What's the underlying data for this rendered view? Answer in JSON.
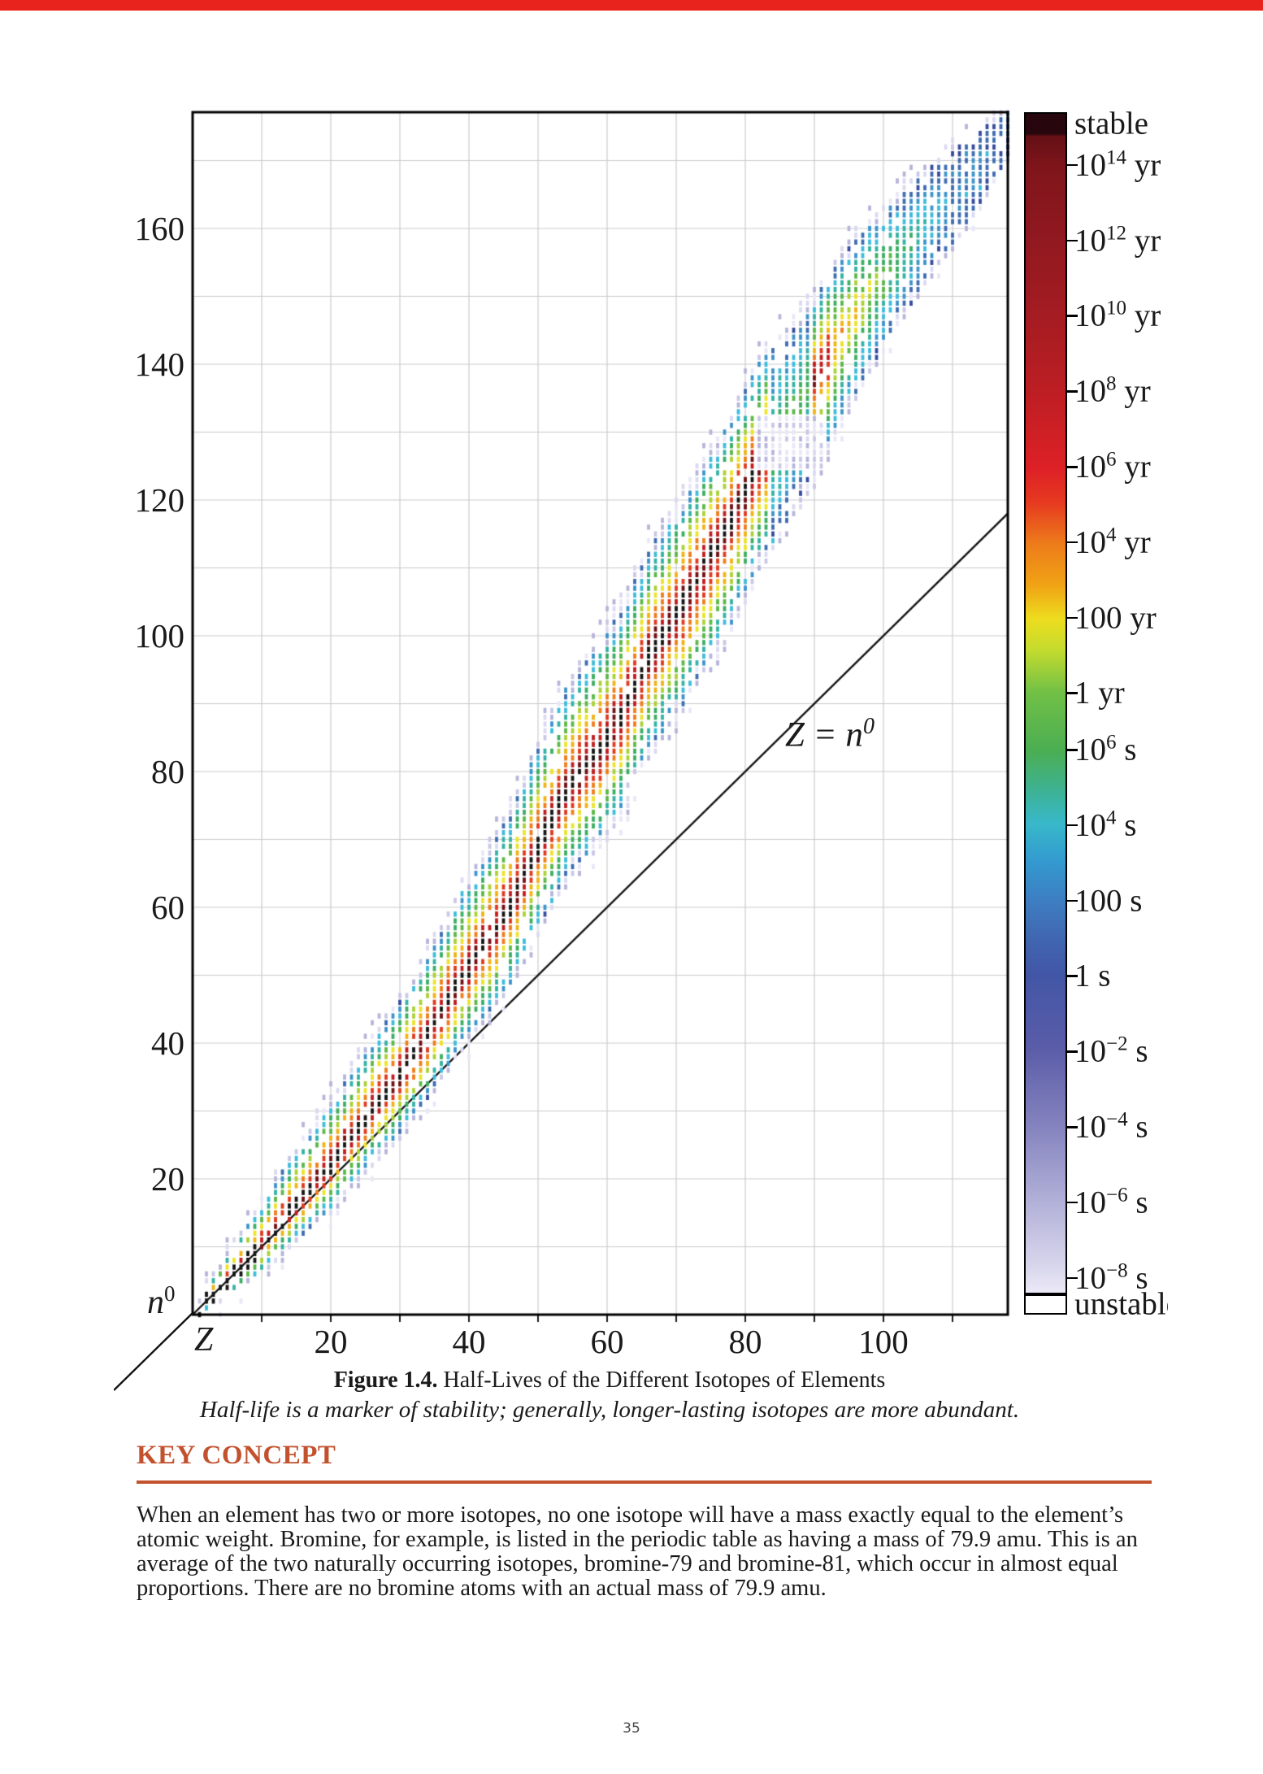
{
  "page": {
    "accent_color": "#e8231e",
    "page_number": "35"
  },
  "figure_caption": {
    "label": "Figure 1.4.",
    "title": " Half-Lives of the Different Isotopes of Elements",
    "subtitle": "Half-life is a marker of stability; generally, longer-lasting isotopes are more abundant."
  },
  "key_concept": {
    "heading": "KEY CONCEPT",
    "accent_color": "#c2512d",
    "lines": [
      "When an element has two or more isotopes, no one isotope will have a mass exactly equal to the element’s",
      "atomic weight. Bromine, for example, is listed in the periodic table as having a mass of 79.9 amu. This is an",
      "average of the two naturally occurring isotopes, bromine-79 and bromine-81, which occur in almost equal",
      "proportions. There are no bromine atoms with an actual mass of 79.9 amu."
    ]
  },
  "chart_data": {
    "type": "scatter",
    "description": "Chart of nuclides: each small tick is an isotope plotted by proton number Z (x-axis) and neutron number n (y-axis), colored by half-life from stable (black) through red/orange/yellow/green/cyan/blue to pale lavender (unstable).",
    "xlabel": "Z",
    "ylabel_base": "n",
    "ylabel_sup": "0",
    "xlim": [
      0,
      118
    ],
    "ylim": [
      0,
      177.5
    ],
    "x_ticks": [
      20,
      40,
      60,
      80,
      100
    ],
    "y_ticks": [
      20,
      40,
      60,
      80,
      100,
      120,
      140,
      160
    ],
    "grid_step": 10,
    "grid_color": "#cbcbcb",
    "diagonal_label_base": "Z = n",
    "diagonal_label_sup": "0",
    "stability_line": [
      [
        1,
        0
      ],
      [
        2,
        2
      ],
      [
        6,
        6
      ],
      [
        10,
        10
      ],
      [
        14,
        15
      ],
      [
        20,
        22
      ],
      [
        26,
        30
      ],
      [
        30,
        35
      ],
      [
        34,
        41
      ],
      [
        38,
        48
      ],
      [
        42,
        54
      ],
      [
        46,
        60
      ],
      [
        50,
        69
      ],
      [
        54,
        77
      ],
      [
        58,
        82
      ],
      [
        62,
        88
      ],
      [
        66,
        97
      ],
      [
        70,
        103
      ],
      [
        74,
        110
      ],
      [
        78,
        117
      ],
      [
        82,
        126
      ],
      [
        86,
        132
      ],
      [
        90,
        138
      ],
      [
        94,
        145
      ],
      [
        98,
        151
      ],
      [
        102,
        156
      ],
      [
        106,
        161
      ],
      [
        110,
        165
      ],
      [
        114,
        170
      ],
      [
        118,
        176
      ]
    ],
    "band_lower_width": [
      [
        1,
        1
      ],
      [
        10,
        4
      ],
      [
        20,
        7
      ],
      [
        30,
        9
      ],
      [
        40,
        11
      ],
      [
        50,
        13
      ],
      [
        60,
        15
      ],
      [
        70,
        16
      ],
      [
        80,
        17
      ],
      [
        90,
        16
      ],
      [
        100,
        12
      ],
      [
        110,
        8
      ],
      [
        118,
        6
      ]
    ],
    "band_upper_width": [
      [
        1,
        2
      ],
      [
        10,
        7
      ],
      [
        20,
        10
      ],
      [
        30,
        12
      ],
      [
        40,
        14
      ],
      [
        50,
        16
      ],
      [
        60,
        17
      ],
      [
        70,
        17
      ],
      [
        80,
        16
      ],
      [
        90,
        13
      ],
      [
        100,
        10
      ],
      [
        110,
        7
      ],
      [
        118,
        2
      ]
    ],
    "center_palette_index": [
      [
        1,
        0
      ],
      [
        83,
        0
      ],
      [
        84,
        8
      ],
      [
        89,
        8
      ],
      [
        90,
        1
      ],
      [
        92,
        1
      ],
      [
        93,
        4
      ],
      [
        96,
        5
      ],
      [
        100,
        7
      ],
      [
        104,
        9
      ],
      [
        108,
        11
      ],
      [
        112,
        12
      ],
      [
        118,
        13
      ]
    ],
    "halflife_palette": [
      "#141414",
      "#701014",
      "#c01c1e",
      "#e03a1e",
      "#ef7d1a",
      "#f0b316",
      "#ece32a",
      "#abd135",
      "#5cb848",
      "#3cae62",
      "#34b2a4",
      "#3ebcdc",
      "#3e93cb",
      "#3e6cb2",
      "#364a9e"
    ],
    "pale_colors": [
      "#c9c7e6",
      "#dbd9f0",
      "#b7b4da",
      "#e9e7f8"
    ],
    "pale_region": {
      "z_min": 82,
      "z_max": 91,
      "n_min": 125,
      "n_max": 132
    },
    "colorbar": {
      "gradient": [
        [
          0.0,
          "#27070d"
        ],
        [
          0.017,
          "#27070d"
        ],
        [
          0.019,
          "#641016"
        ],
        [
          0.046,
          "#7f151b"
        ],
        [
          0.11,
          "#921920"
        ],
        [
          0.172,
          "#a41c22"
        ],
        [
          0.235,
          "#bc1e23"
        ],
        [
          0.302,
          "#de2126"
        ],
        [
          0.33,
          "#e63a20"
        ],
        [
          0.365,
          "#ed7c1a"
        ],
        [
          0.4,
          "#f0a315"
        ],
        [
          0.428,
          "#eedc1e"
        ],
        [
          0.455,
          "#c4db2e"
        ],
        [
          0.491,
          "#71c046"
        ],
        [
          0.54,
          "#4bae52"
        ],
        [
          0.575,
          "#3db295"
        ],
        [
          0.602,
          "#38b8ca"
        ],
        [
          0.635,
          "#3399cf"
        ],
        [
          0.667,
          "#3d7ec2"
        ],
        [
          0.7,
          "#4166b1"
        ],
        [
          0.729,
          "#4156a6"
        ],
        [
          0.792,
          "#5a5ca8"
        ],
        [
          0.856,
          "#8381bd"
        ],
        [
          0.918,
          "#aeadd6"
        ],
        [
          0.983,
          "#dcdaee"
        ],
        [
          1.0,
          "#eceaf7"
        ]
      ],
      "top_label": "stable",
      "bottom_label": "unstable",
      "ticks": [
        {
          "label": "10^14 yr",
          "log10_s": 21.5
        },
        {
          "label": "10^12 yr",
          "log10_s": 19.5
        },
        {
          "label": "10^10 yr",
          "log10_s": 17.5
        },
        {
          "label": "10^8 yr",
          "log10_s": 15.5
        },
        {
          "label": "10^6 yr",
          "log10_s": 13.5
        },
        {
          "label": "10^4 yr",
          "log10_s": 11.5
        },
        {
          "label": "100 yr",
          "log10_s": 9.5
        },
        {
          "label": "1 yr",
          "log10_s": 7.5
        },
        {
          "label": "10^6 s",
          "log10_s": 6
        },
        {
          "label": "10^4 s",
          "log10_s": 4
        },
        {
          "label": "100 s",
          "log10_s": 2
        },
        {
          "label": "1 s",
          "log10_s": 0
        },
        {
          "label": "10^-2 s",
          "log10_s": -2
        },
        {
          "label": "10^-4 s",
          "log10_s": -4
        },
        {
          "label": "10^-6 s",
          "log10_s": -6
        },
        {
          "label": "10^-8 s",
          "log10_s": -8
        }
      ]
    }
  }
}
